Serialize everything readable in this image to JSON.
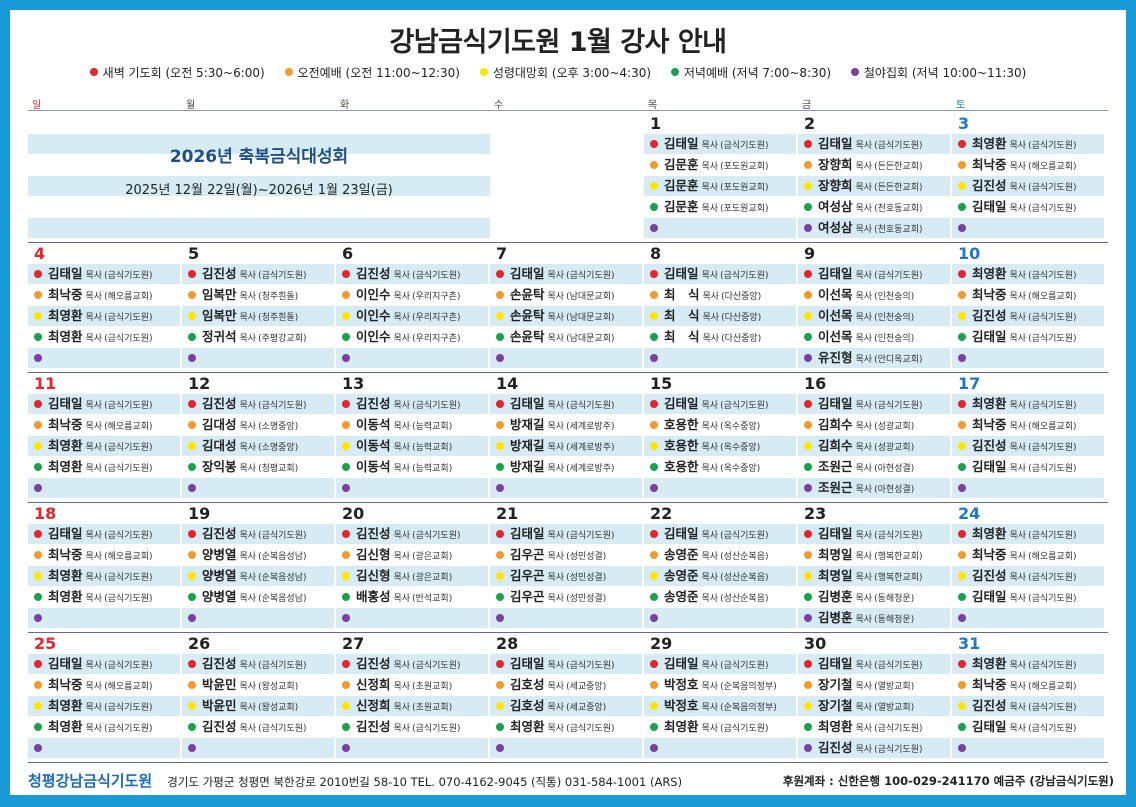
{
  "title": "강남금식기도원 1월 강사 안내",
  "legend": [
    {
      "color": "red",
      "label": "새벽 기도회 (오전 5:30~6:00)"
    },
    {
      "color": "orange",
      "label": "오전예배 (오전 11:00~12:30)"
    },
    {
      "color": "yellow",
      "label": "성령대망회 (오후 3:00~4:30)"
    },
    {
      "color": "green",
      "label": "저녁예배 (저녁 7:00~8:30)"
    },
    {
      "color": "purple",
      "label": "철야집회 (저녁 10:00~11:30)"
    }
  ],
  "weekdays": [
    "일",
    "월",
    "화",
    "수",
    "목",
    "금",
    "토"
  ],
  "title_suffix": "목사",
  "banner": {
    "title": "2026년 축복금식대성회",
    "dates": "2025년 12월 22일(월)~2026년 1월 23일(금)"
  },
  "weeks": [
    [
      null,
      null,
      null,
      null,
      {
        "day": "1",
        "slots": [
          [
            "김태일",
            "금식기도원"
          ],
          [
            "김문훈",
            "포도원교회"
          ],
          [
            "김문훈",
            "포도원교회"
          ],
          [
            "김문훈",
            "포도원교회"
          ],
          null
        ]
      },
      {
        "day": "2",
        "slots": [
          [
            "김태일",
            "금식기도원"
          ],
          [
            "장향희",
            "든든한교회"
          ],
          [
            "장향희",
            "든든한교회"
          ],
          [
            "여성삼",
            "천호동교회"
          ],
          [
            "여성삼",
            "천호동교회"
          ]
        ]
      },
      {
        "day": "3",
        "slots": [
          [
            "최영환",
            "금식기도원"
          ],
          [
            "최낙중",
            "해오름교회"
          ],
          [
            "김진성",
            "금식기도원"
          ],
          [
            "김태일",
            "금식기도원"
          ],
          null
        ]
      }
    ],
    [
      {
        "day": "4",
        "slots": [
          [
            "김태일",
            "금식기도원"
          ],
          [
            "최낙중",
            "해오름교회"
          ],
          [
            "최영환",
            "금식기도원"
          ],
          [
            "최영환",
            "금식기도원"
          ],
          null
        ]
      },
      {
        "day": "5",
        "slots": [
          [
            "김진성",
            "금식기도원"
          ],
          [
            "임복만",
            "청주흰돌"
          ],
          [
            "임복만",
            "청주흰돌"
          ],
          [
            "정귀석",
            "주평강교회"
          ],
          null
        ]
      },
      {
        "day": "6",
        "slots": [
          [
            "김진성",
            "금식기도원"
          ],
          [
            "이인수",
            "우리지구촌"
          ],
          [
            "이인수",
            "우리지구촌"
          ],
          [
            "이인수",
            "우리지구촌"
          ],
          null
        ]
      },
      {
        "day": "7",
        "slots": [
          [
            "김태일",
            "금식기도원"
          ],
          [
            "손윤탁",
            "남대문교회"
          ],
          [
            "손윤탁",
            "남대문교회"
          ],
          [
            "손윤탁",
            "남대문교회"
          ],
          null
        ]
      },
      {
        "day": "8",
        "slots": [
          [
            "김태일",
            "금식기도원"
          ],
          [
            "최　식",
            "다산중앙"
          ],
          [
            "최　식",
            "다산중앙"
          ],
          [
            "최　식",
            "다산중앙"
          ],
          null
        ]
      },
      {
        "day": "9",
        "slots": [
          [
            "김태일",
            "금식기도원"
          ],
          [
            "이선목",
            "인천숭의"
          ],
          [
            "이선목",
            "인천숭의"
          ],
          [
            "이선목",
            "인천숭의"
          ],
          [
            "유진형",
            "안디옥교회"
          ]
        ]
      },
      {
        "day": "10",
        "slots": [
          [
            "최영환",
            "금식기도원"
          ],
          [
            "최낙중",
            "해오름교회"
          ],
          [
            "김진성",
            "금식기도원"
          ],
          [
            "김태일",
            "금식기도원"
          ],
          null
        ]
      }
    ],
    [
      {
        "day": "11",
        "slots": [
          [
            "김태일",
            "금식기도원"
          ],
          [
            "최낙중",
            "해오름교회"
          ],
          [
            "최영환",
            "금식기도원"
          ],
          [
            "최영환",
            "금식기도원"
          ],
          null
        ]
      },
      {
        "day": "12",
        "slots": [
          [
            "김진성",
            "금식기도원"
          ],
          [
            "김대성",
            "소명중앙"
          ],
          [
            "김대성",
            "소명중앙"
          ],
          [
            "장익봉",
            "청평교회"
          ],
          null
        ]
      },
      {
        "day": "13",
        "slots": [
          [
            "김진성",
            "금식기도원"
          ],
          [
            "이동석",
            "능력교회"
          ],
          [
            "이동석",
            "능력교회"
          ],
          [
            "이동석",
            "능력교회"
          ],
          null
        ]
      },
      {
        "day": "14",
        "slots": [
          [
            "김태일",
            "금식기도원"
          ],
          [
            "방재길",
            "세계로방주"
          ],
          [
            "방재길",
            "세계로방주"
          ],
          [
            "방재길",
            "세계로방주"
          ],
          null
        ]
      },
      {
        "day": "15",
        "slots": [
          [
            "김태일",
            "금식기도원"
          ],
          [
            "호용한",
            "옥수중앙"
          ],
          [
            "호용한",
            "옥수중앙"
          ],
          [
            "호용한",
            "옥수중앙"
          ],
          null
        ]
      },
      {
        "day": "16",
        "slots": [
          [
            "김태일",
            "금식기도원"
          ],
          [
            "김희수",
            "성광교회"
          ],
          [
            "김희수",
            "성광교회"
          ],
          [
            "조원근",
            "아현성결"
          ],
          [
            "조원근",
            "아현성결"
          ]
        ]
      },
      {
        "day": "17",
        "slots": [
          [
            "최영환",
            "금식기도원"
          ],
          [
            "최낙중",
            "해오름교회"
          ],
          [
            "김진성",
            "금식기도원"
          ],
          [
            "김태일",
            "금식기도원"
          ],
          null
        ]
      }
    ],
    [
      {
        "day": "18",
        "slots": [
          [
            "김태일",
            "금식기도원"
          ],
          [
            "최낙중",
            "해오름교회"
          ],
          [
            "최영환",
            "금식기도원"
          ],
          [
            "최영환",
            "금식기도원"
          ],
          null
        ]
      },
      {
        "day": "19",
        "slots": [
          [
            "김진성",
            "금식기도원"
          ],
          [
            "양병열",
            "순복음성남"
          ],
          [
            "양병열",
            "순복음성남"
          ],
          [
            "양병열",
            "순복음성남"
          ],
          null
        ]
      },
      {
        "day": "20",
        "slots": [
          [
            "김진성",
            "금식기도원"
          ],
          [
            "김신형",
            "광은교회"
          ],
          [
            "김신형",
            "광은교회"
          ],
          [
            "배홍성",
            "반석교회"
          ],
          null
        ]
      },
      {
        "day": "21",
        "slots": [
          [
            "김태일",
            "금식기도원"
          ],
          [
            "김우곤",
            "성민성결"
          ],
          [
            "김우곤",
            "성민성결"
          ],
          [
            "김우곤",
            "성민성결"
          ],
          null
        ]
      },
      {
        "day": "22",
        "slots": [
          [
            "김태일",
            "금식기도원"
          ],
          [
            "송영준",
            "성산순복음"
          ],
          [
            "송영준",
            "성산순복음"
          ],
          [
            "송영준",
            "성산순복음"
          ],
          null
        ]
      },
      {
        "day": "23",
        "slots": [
          [
            "김태일",
            "금식기도원"
          ],
          [
            "최명일",
            "행복한교회"
          ],
          [
            "최명일",
            "행복한교회"
          ],
          [
            "김병훈",
            "동해청운"
          ],
          [
            "김병훈",
            "동해청운"
          ]
        ]
      },
      {
        "day": "24",
        "slots": [
          [
            "최영환",
            "금식기도원"
          ],
          [
            "최낙중",
            "해오름교회"
          ],
          [
            "김진성",
            "금식기도원"
          ],
          [
            "김태일",
            "금식기도원"
          ],
          null
        ]
      }
    ],
    [
      {
        "day": "25",
        "slots": [
          [
            "김태일",
            "금식기도원"
          ],
          [
            "최낙중",
            "해오름교회"
          ],
          [
            "최영환",
            "금식기도원"
          ],
          [
            "최영환",
            "금식기도원"
          ],
          null
        ]
      },
      {
        "day": "26",
        "slots": [
          [
            "김진성",
            "금식기도원"
          ],
          [
            "박윤민",
            "왕성교회"
          ],
          [
            "박윤민",
            "왕성교회"
          ],
          [
            "김진성",
            "금식기도원"
          ],
          null
        ]
      },
      {
        "day": "27",
        "slots": [
          [
            "김진성",
            "금식기도원"
          ],
          [
            "신정희",
            "초원교회"
          ],
          [
            "신정희",
            "초원교회"
          ],
          [
            "김진성",
            "금식기도원"
          ],
          null
        ]
      },
      {
        "day": "28",
        "slots": [
          [
            "김태일",
            "금식기도원"
          ],
          [
            "김호성",
            "세교중앙"
          ],
          [
            "김호성",
            "세교중앙"
          ],
          [
            "최영환",
            "금식기도원"
          ],
          null
        ]
      },
      {
        "day": "29",
        "slots": [
          [
            "김태일",
            "금식기도원"
          ],
          [
            "박정호",
            "순복음의정부"
          ],
          [
            "박정호",
            "순복음의정부"
          ],
          [
            "최영환",
            "금식기도원"
          ],
          null
        ]
      },
      {
        "day": "30",
        "slots": [
          [
            "김태일",
            "금식기도원"
          ],
          [
            "장기철",
            "열방교회"
          ],
          [
            "장기철",
            "열방교회"
          ],
          [
            "최영환",
            "금식기도원"
          ],
          [
            "김진성",
            "금식기도원"
          ]
        ]
      },
      {
        "day": "31",
        "slots": [
          [
            "최영환",
            "금식기도원"
          ],
          [
            "최낙중",
            "해오름교회"
          ],
          [
            "김진성",
            "금식기도원"
          ],
          [
            "김태일",
            "금식기도원"
          ],
          null
        ]
      }
    ]
  ],
  "footer": {
    "org": "청평강남금식기도원",
    "address": "경기도 가평군 청평면 북한강로 2010번길 58-10   TEL. 070-4162-9045 (직통)   031-584-1001 (ARS)",
    "account": "후원계좌 : 신한은행 100-029-241170 예금주 (강남금식기도원)"
  },
  "colors": {
    "frame": "#1a9ad6",
    "red": "#e3262c",
    "orange": "#f49a2c",
    "yellow": "#ffe600",
    "green": "#16a34a",
    "purple": "#7a3fa0",
    "row_tint": "#d6ebf3",
    "sunday": "#e3262c",
    "saturday": "#1f77c9"
  }
}
